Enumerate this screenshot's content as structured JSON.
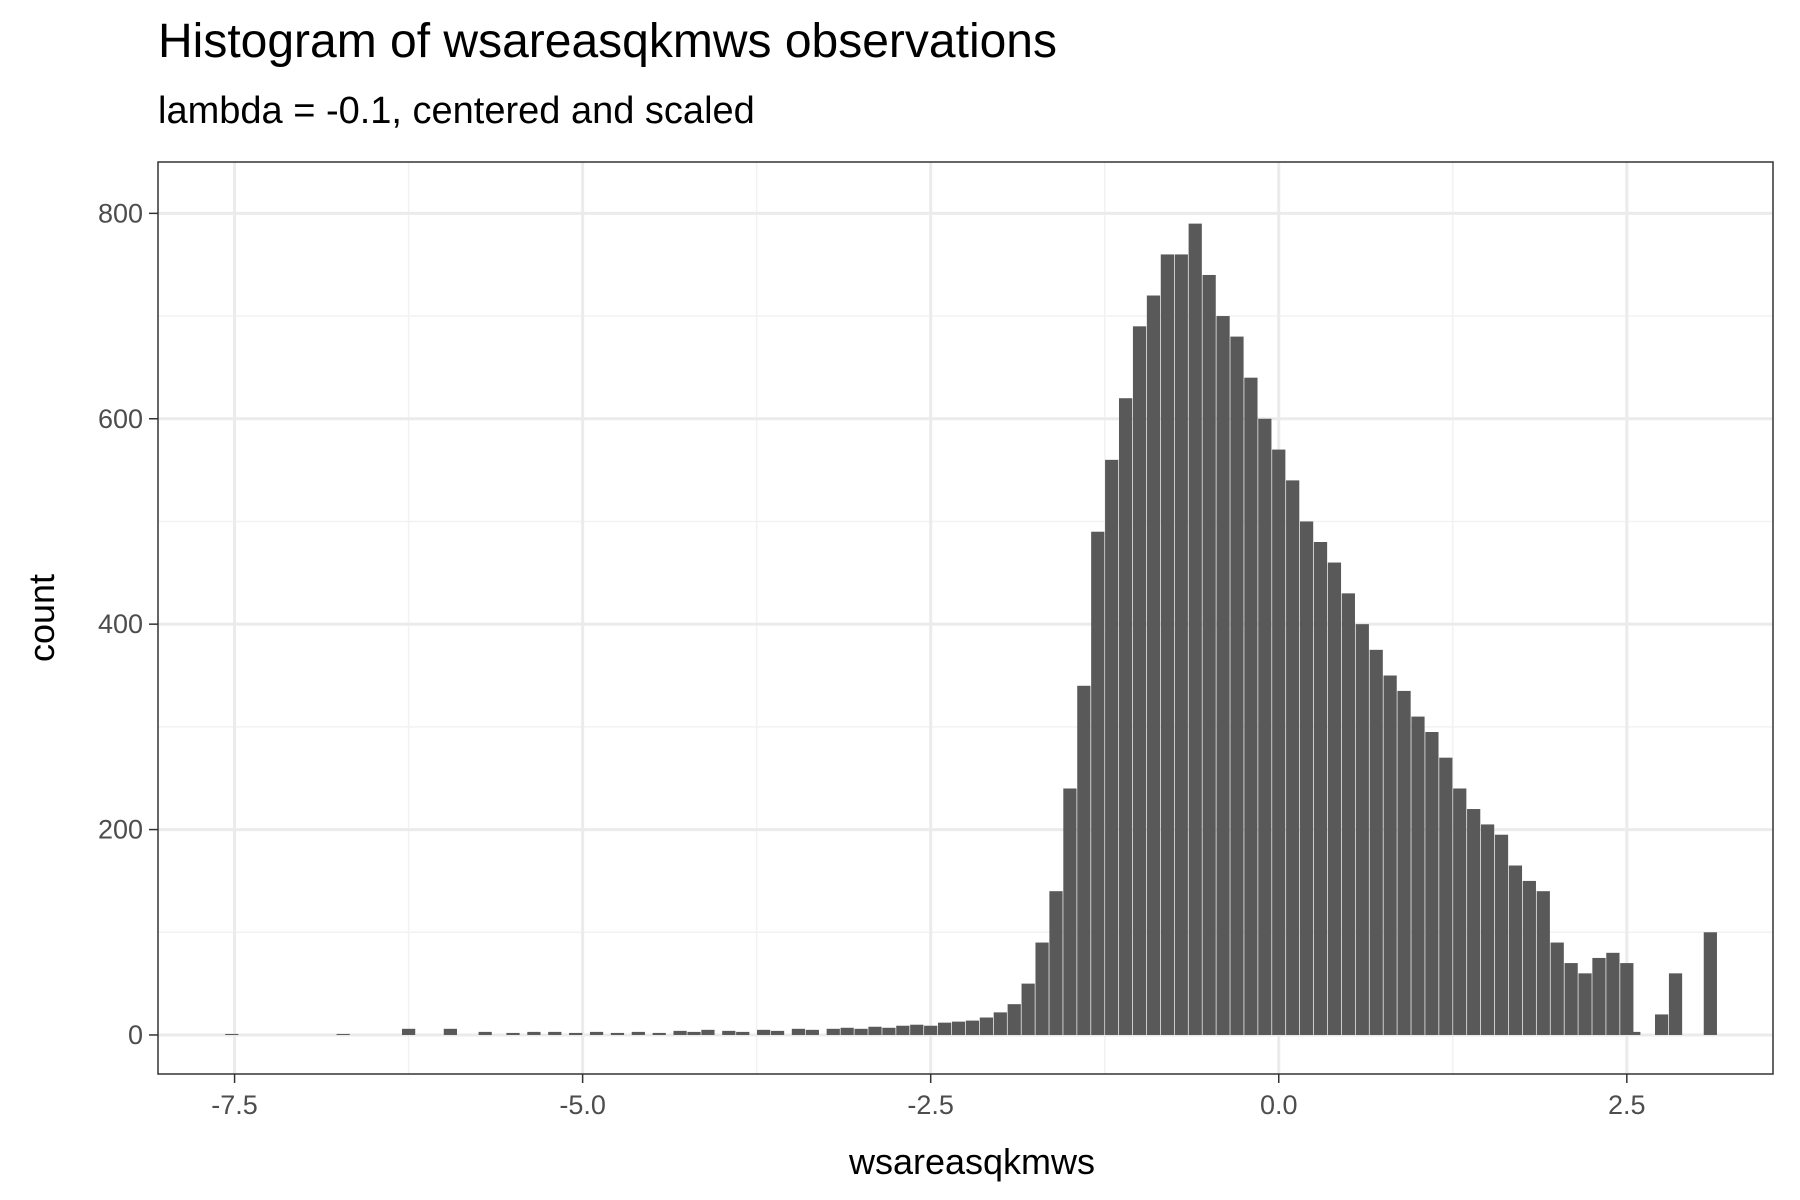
{
  "chart_data": {
    "type": "histogram",
    "title": "Histogram of wsareasqkmws observations",
    "subtitle": "lambda = -0.1, centered and scaled",
    "xlabel": "wsareasqkmws",
    "ylabel": "count",
    "xlim": [
      -8.05,
      3.55
    ],
    "ylim": [
      -38,
      850
    ],
    "x_ticks": [
      -7.5,
      -5.0,
      -2.5,
      0.0,
      2.5
    ],
    "x_tick_labels": [
      "-7.5",
      "-5.0",
      "-2.5",
      "0.0",
      "2.5"
    ],
    "y_ticks": [
      0,
      200,
      400,
      600,
      800
    ],
    "y_tick_labels": [
      "0",
      "200",
      "400",
      "600",
      "800"
    ],
    "grid": true,
    "bar_color": "#595959",
    "bins": [
      {
        "x": -7.52,
        "count": 1
      },
      {
        "x": -6.72,
        "count": 1
      },
      {
        "x": -6.25,
        "count": 6
      },
      {
        "x": -5.95,
        "count": 6
      },
      {
        "x": -5.7,
        "count": 3
      },
      {
        "x": -5.5,
        "count": 2
      },
      {
        "x": -5.35,
        "count": 3
      },
      {
        "x": -5.2,
        "count": 3
      },
      {
        "x": -5.05,
        "count": 2
      },
      {
        "x": -4.9,
        "count": 3
      },
      {
        "x": -4.75,
        "count": 2
      },
      {
        "x": -4.6,
        "count": 3
      },
      {
        "x": -4.45,
        "count": 2
      },
      {
        "x": -4.3,
        "count": 4
      },
      {
        "x": -4.2,
        "count": 3
      },
      {
        "x": -4.1,
        "count": 5
      },
      {
        "x": -3.95,
        "count": 4
      },
      {
        "x": -3.85,
        "count": 3
      },
      {
        "x": -3.7,
        "count": 5
      },
      {
        "x": -3.6,
        "count": 4
      },
      {
        "x": -3.45,
        "count": 6
      },
      {
        "x": -3.35,
        "count": 5
      },
      {
        "x": -3.2,
        "count": 6
      },
      {
        "x": -3.1,
        "count": 7
      },
      {
        "x": -3.0,
        "count": 6
      },
      {
        "x": -2.9,
        "count": 8
      },
      {
        "x": -2.8,
        "count": 7
      },
      {
        "x": -2.7,
        "count": 9
      },
      {
        "x": -2.6,
        "count": 10
      },
      {
        "x": -2.5,
        "count": 9
      },
      {
        "x": -2.4,
        "count": 12
      },
      {
        "x": -2.3,
        "count": 13
      },
      {
        "x": -2.2,
        "count": 14
      },
      {
        "x": -2.1,
        "count": 17
      },
      {
        "x": -2.0,
        "count": 22
      },
      {
        "x": -1.9,
        "count": 30
      },
      {
        "x": -1.8,
        "count": 50
      },
      {
        "x": -1.7,
        "count": 90
      },
      {
        "x": -1.6,
        "count": 140
      },
      {
        "x": -1.5,
        "count": 240
      },
      {
        "x": -1.4,
        "count": 340
      },
      {
        "x": -1.3,
        "count": 490
      },
      {
        "x": -1.2,
        "count": 560
      },
      {
        "x": -1.1,
        "count": 620
      },
      {
        "x": -1.0,
        "count": 690
      },
      {
        "x": -0.9,
        "count": 720
      },
      {
        "x": -0.8,
        "count": 760
      },
      {
        "x": -0.7,
        "count": 760
      },
      {
        "x": -0.6,
        "count": 790
      },
      {
        "x": -0.5,
        "count": 740
      },
      {
        "x": -0.4,
        "count": 700
      },
      {
        "x": -0.3,
        "count": 680
      },
      {
        "x": -0.2,
        "count": 640
      },
      {
        "x": -0.1,
        "count": 600
      },
      {
        "x": 0.0,
        "count": 570
      },
      {
        "x": 0.1,
        "count": 540
      },
      {
        "x": 0.2,
        "count": 500
      },
      {
        "x": 0.3,
        "count": 480
      },
      {
        "x": 0.4,
        "count": 460
      },
      {
        "x": 0.5,
        "count": 430
      },
      {
        "x": 0.6,
        "count": 400
      },
      {
        "x": 0.7,
        "count": 375
      },
      {
        "x": 0.8,
        "count": 350
      },
      {
        "x": 0.9,
        "count": 335
      },
      {
        "x": 1.0,
        "count": 310
      },
      {
        "x": 1.1,
        "count": 295
      },
      {
        "x": 1.2,
        "count": 270
      },
      {
        "x": 1.3,
        "count": 240
      },
      {
        "x": 1.4,
        "count": 220
      },
      {
        "x": 1.5,
        "count": 205
      },
      {
        "x": 1.6,
        "count": 195
      },
      {
        "x": 1.7,
        "count": 165
      },
      {
        "x": 1.8,
        "count": 150
      },
      {
        "x": 1.9,
        "count": 140
      },
      {
        "x": 2.0,
        "count": 90
      },
      {
        "x": 2.1,
        "count": 70
      },
      {
        "x": 2.2,
        "count": 60
      },
      {
        "x": 2.3,
        "count": 75
      },
      {
        "x": 2.4,
        "count": 80
      },
      {
        "x": 2.5,
        "count": 70
      },
      {
        "x": 2.55,
        "count": 3
      },
      {
        "x": 2.75,
        "count": 20
      },
      {
        "x": 2.85,
        "count": 60
      },
      {
        "x": 3.1,
        "count": 100
      }
    ]
  }
}
